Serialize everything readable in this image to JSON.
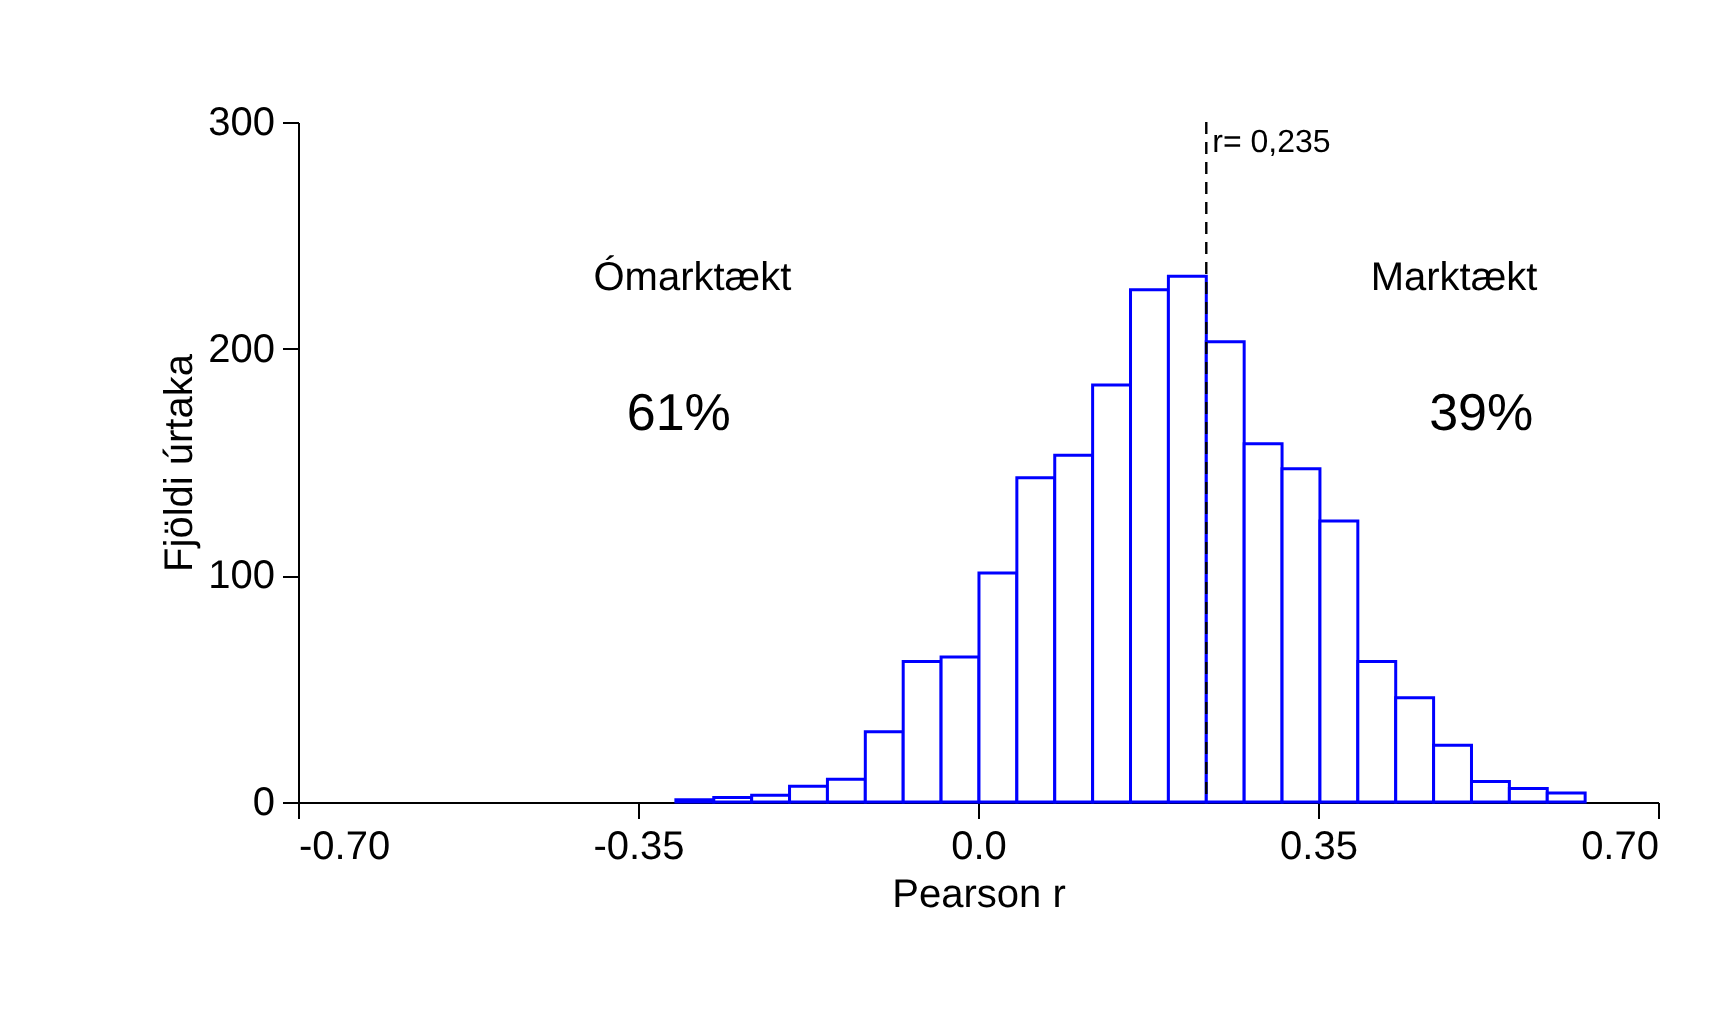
{
  "chart_data": {
    "type": "histogram",
    "xlabel": "Pearson r",
    "ylabel": "Fjöldi úrtaka",
    "bins": [
      -0.311,
      -0.272,
      -0.233,
      -0.194,
      -0.155,
      -0.116,
      -0.077,
      -0.038,
      0.001,
      0.04,
      0.079,
      0.118,
      0.157,
      0.196,
      0.235,
      0.274,
      0.313,
      0.352,
      0.391,
      0.43,
      0.469,
      0.508,
      0.547,
      0.586,
      0.625
    ],
    "values": [
      1,
      2,
      3,
      7,
      10,
      31,
      62,
      64,
      101,
      143,
      153,
      184,
      226,
      232,
      203,
      158,
      147,
      124,
      62,
      46,
      25,
      9,
      6,
      4
    ],
    "color": "#0000ff",
    "xlim": [
      -0.7,
      0.7
    ],
    "xticks": [
      {
        "value": -0.7,
        "label": "-0.70"
      },
      -0.35,
      {
        "value": 0,
        "label": "0.0"
      },
      0.35,
      {
        "value": 0.7,
        "label": "0.70"
      }
    ],
    "ylim": [
      0,
      300
    ],
    "yticks": [
      0,
      100,
      200,
      300
    ],
    "grid": false,
    "ref_lines": [
      {
        "axis": "x",
        "value": 0.235,
        "label": "r= 0,235",
        "line_style": "dashed",
        "color": "#000000"
      }
    ],
    "annotations": [
      "Ómarktækt",
      "61%",
      "Marktækt",
      "39%"
    ]
  }
}
